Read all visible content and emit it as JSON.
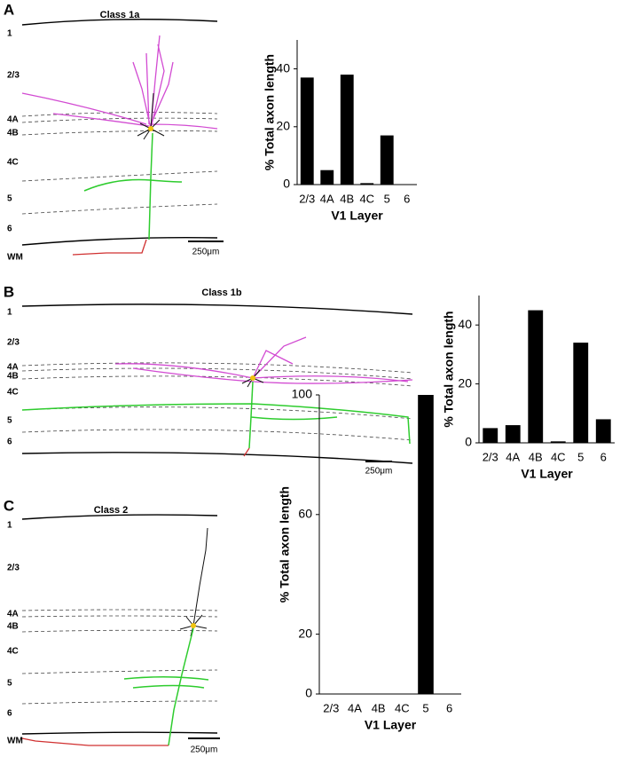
{
  "chart_data": [
    {
      "type": "bar",
      "ylabel": "% Total axon length",
      "xlabel": "V1 Layer",
      "categories": [
        "2/3",
        "4A",
        "4B",
        "4C",
        "5",
        "6"
      ],
      "values": [
        37,
        5,
        38,
        0.5,
        17,
        0
      ],
      "color": "#000000",
      "ylim": [
        0,
        50
      ],
      "yticks": [
        0,
        20,
        40
      ]
    },
    {
      "type": "bar",
      "ylabel": "% Total axon length",
      "xlabel": "V1 Layer",
      "categories": [
        "2/3",
        "4A",
        "4B",
        "4C",
        "5",
        "6"
      ],
      "values": [
        5,
        6,
        45,
        0.5,
        34,
        8
      ],
      "color": "#000000",
      "ylim": [
        0,
        50
      ],
      "yticks": [
        0,
        20,
        40
      ]
    },
    {
      "type": "bar",
      "ylabel": "% Total axon length",
      "xlabel": "V1 Layer",
      "categories": [
        "2/3",
        "4A",
        "4B",
        "4C",
        "5",
        "6"
      ],
      "values": [
        0,
        0,
        0,
        0,
        100,
        0
      ],
      "color": "#000000",
      "ylim": [
        0,
        100
      ],
      "yticks": [
        0,
        20,
        60,
        100
      ]
    }
  ],
  "panels": [
    {
      "letter": "A",
      "title": "Class 1a",
      "layers": [
        "1",
        "2/3",
        "4A",
        "4B",
        "4C",
        "5",
        "6",
        "WM"
      ],
      "scale_bar": "250μm"
    },
    {
      "letter": "B",
      "title": "Class 1b",
      "layers": [
        "1",
        "2/3",
        "4A",
        "4B",
        "4C",
        "5",
        "6"
      ],
      "scale_bar": "250μm"
    },
    {
      "letter": "C",
      "title": "Class 2",
      "layers": [
        "1",
        "2/3",
        "4A",
        "4B",
        "4C",
        "5",
        "6",
        "WM"
      ],
      "scale_bar": "250μm"
    }
  ]
}
